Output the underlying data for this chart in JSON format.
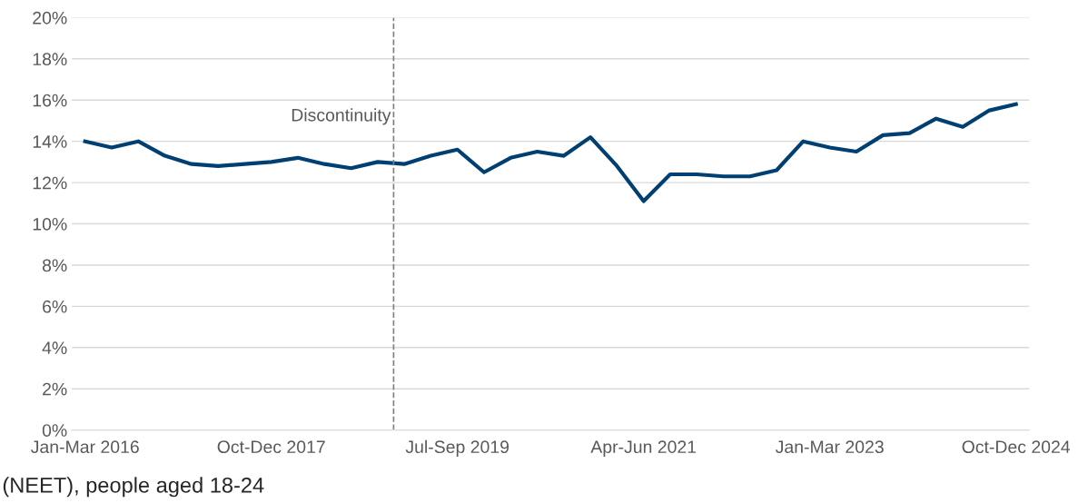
{
  "chart_data": {
    "type": "line",
    "categories": [
      "Jan-Mar 2016",
      null,
      null,
      null,
      null,
      null,
      null,
      "Oct-Dec 2017",
      null,
      null,
      null,
      null,
      null,
      null,
      "Jul-Sep 2019",
      null,
      null,
      null,
      null,
      null,
      null,
      "Apr-Jun 2021",
      null,
      null,
      null,
      null,
      null,
      null,
      "Jan-Mar 2023",
      null,
      null,
      null,
      null,
      null,
      null,
      "Oct-Dec 2024"
    ],
    "series": [
      {
        "color": "#003f72",
        "values": [
          14.0,
          13.7,
          14.0,
          13.3,
          12.9,
          12.8,
          12.9,
          13.0,
          13.2,
          12.9,
          12.7,
          13.0,
          12.9,
          13.3,
          13.6,
          12.5,
          13.2,
          13.5,
          13.3,
          14.2,
          12.8,
          11.1,
          12.4,
          12.4,
          12.3,
          12.3,
          12.6,
          14.0,
          13.7,
          13.5,
          14.3,
          14.4,
          15.1,
          14.7,
          15.5,
          15.8
        ]
      }
    ],
    "ylim": [
      0,
      20
    ],
    "yticks": [
      {
        "value": 0,
        "label": "0%"
      },
      {
        "value": 2,
        "label": "2%"
      },
      {
        "value": 4,
        "label": "4%"
      },
      {
        "value": 6,
        "label": "6%"
      },
      {
        "value": 8,
        "label": "8%"
      },
      {
        "value": 10,
        "label": "10%"
      },
      {
        "value": 12,
        "label": "12%"
      },
      {
        "value": 14,
        "label": "14%"
      },
      {
        "value": 16,
        "label": "16%"
      },
      {
        "value": 18,
        "label": "18%"
      },
      {
        "value": 20,
        "label": "20%"
      }
    ],
    "grid": "y",
    "annotations": [
      "Discontinuity",
      "(NEET), people aged 18-24"
    ]
  }
}
